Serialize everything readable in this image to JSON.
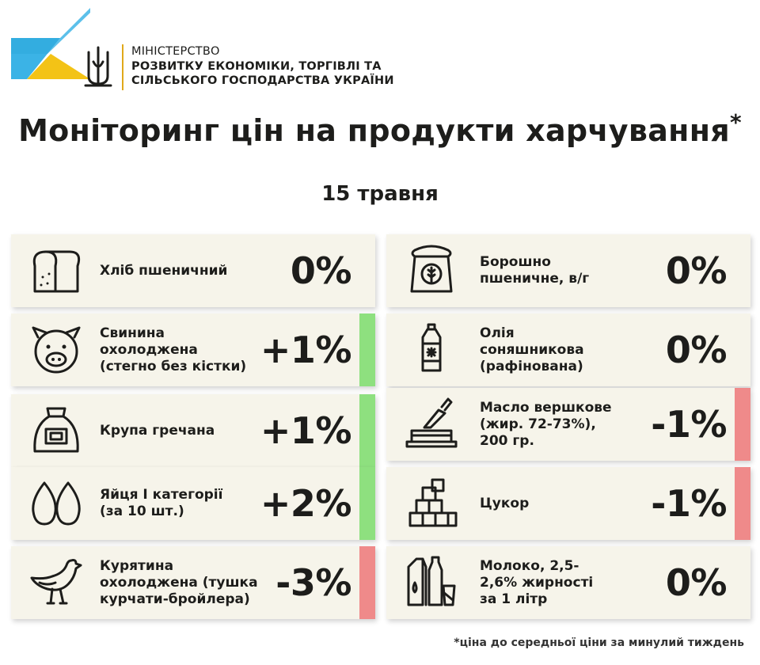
{
  "header": {
    "ministry_line1": "МІНІСТЕРСТВО",
    "ministry_line2": "РОЗВИТКУ ЕКОНОМІКИ, ТОРГІВЛІ ТА",
    "ministry_line3": "СІЛЬСЬКОГО ГОСПОДАРСТВА УКРАЇНИ"
  },
  "title": "Моніторинг цін на продукти харчування",
  "title_mark": "*",
  "date": "15 травня",
  "colors": {
    "up": "#8ee07f",
    "down": "#ef8a8a",
    "card": "#f6f4ea",
    "logo_blue": "#3bb3e6",
    "logo_yellow": "#f3c316"
  },
  "left_items": [
    {
      "icon": "bread-icon",
      "label": "Хліб пшеничний",
      "change": "0%",
      "trend": "none"
    },
    {
      "icon": "pig-icon",
      "label": "Свинина\nохолоджена\n(стегно без кістки)",
      "change": "+1%",
      "trend": "up"
    },
    {
      "icon": "grain-sack-icon",
      "label": "Крупа гречана",
      "change": "+1%",
      "trend": "up"
    },
    {
      "icon": "eggs-icon",
      "label": "Яйця І категорії\n(за 10 шт.)",
      "change": "+2%",
      "trend": "up"
    },
    {
      "icon": "chicken-icon",
      "label": "Курятина\nохолоджена (тушка\nкурчати-бройлера)",
      "change": "-3%",
      "trend": "down"
    }
  ],
  "right_items": [
    {
      "icon": "flour-sack-icon",
      "label": "Борошно\nпшеничне, в/г",
      "change": "0%",
      "trend": "none"
    },
    {
      "icon": "oil-bottle-icon",
      "label": "Олія\nсоняшникова\n(рафінована)",
      "change": "0%",
      "trend": "none"
    },
    {
      "icon": "butter-icon",
      "label": "Масло вершкове\n(жир. 72-73%),\n200 гр.",
      "change": "-1%",
      "trend": "down"
    },
    {
      "icon": "sugar-cubes-icon",
      "label": "Цукор",
      "change": "-1%",
      "trend": "down"
    },
    {
      "icon": "dairy-icon",
      "label": "Молоко, 2,5-\n2,6% жирності\nза 1 літр",
      "change": "0%",
      "trend": "none"
    }
  ],
  "footnote": "*ціна до середньої ціни за минулий тиждень"
}
